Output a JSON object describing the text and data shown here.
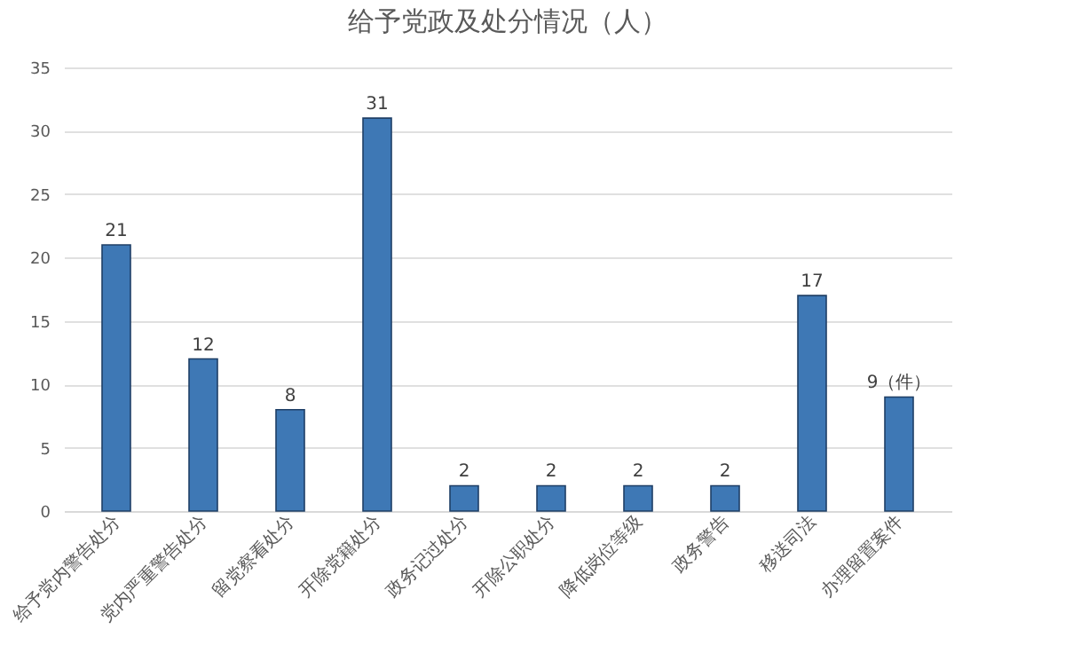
{
  "chart_data": {
    "type": "bar",
    "title": "给予党政及处分情况（人）",
    "categories": [
      "给予党内警告处分",
      "党内严重警告处分",
      "留党察看处分",
      "开除党籍处分",
      "政务记过处分",
      "开除公职处分",
      "降低岗位等级",
      "政务警告",
      "移送司法",
      "办理留置案件"
    ],
    "values": [
      21,
      12,
      8,
      31,
      2,
      2,
      2,
      2,
      17,
      9
    ],
    "value_labels": [
      "21",
      "12",
      "8",
      "31",
      "2",
      "2",
      "2",
      "2",
      "17",
      "9（件）"
    ],
    "color": "#3e78b5",
    "ylim": [
      0,
      35
    ],
    "yticks": [
      0,
      5,
      10,
      15,
      20,
      25,
      30,
      35
    ],
    "grid": "y"
  }
}
